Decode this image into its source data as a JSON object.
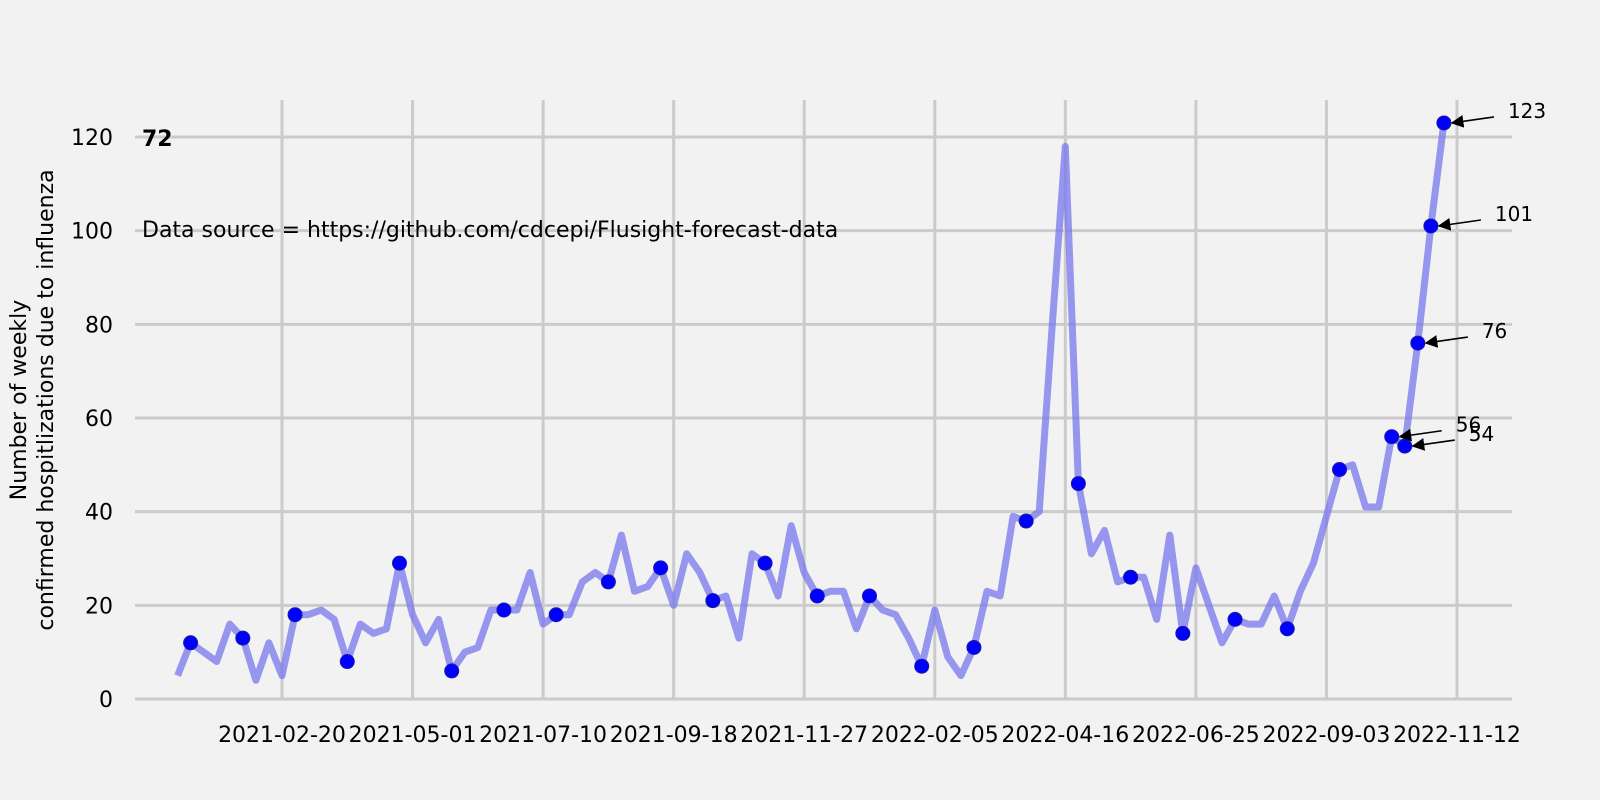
{
  "chart_data": {
    "type": "line",
    "title": "",
    "xlabel": "",
    "ylabel": "Number of weekly\nconfirmed hospitlizations due to influenza",
    "corner_label": "72",
    "source_note": "Data source = https://github.com/cdcepi/Flusight-forecast-data",
    "ylim": [
      0,
      127
    ],
    "yticks": [
      0,
      20,
      40,
      60,
      80,
      100,
      120
    ],
    "x_start": "2020-12-26",
    "xticks": [
      "2021-02-20",
      "2021-05-01",
      "2021-07-10",
      "2021-09-18",
      "2021-11-27",
      "2022-02-05",
      "2022-04-16",
      "2022-06-25",
      "2022-09-03",
      "2022-11-12"
    ],
    "grid": true,
    "line_color": "#7777ee",
    "marker_color": "#0000ff",
    "values": [
      5,
      12,
      10,
      8,
      16,
      13,
      4,
      12,
      5,
      18,
      18,
      19,
      17,
      8,
      16,
      14,
      15,
      29,
      18,
      12,
      17,
      6,
      10,
      11,
      19,
      19,
      19,
      27,
      16,
      18,
      18,
      25,
      27,
      25,
      35,
      23,
      24,
      28,
      20,
      31,
      27,
      21,
      22,
      13,
      31,
      29,
      22,
      37,
      27,
      22,
      23,
      23,
      15,
      22,
      19,
      18,
      13,
      7,
      19,
      9,
      5,
      11,
      23,
      22,
      39,
      38,
      40,
      80,
      118,
      46,
      31,
      36,
      25,
      26,
      26,
      17,
      35,
      14,
      28,
      20,
      12,
      17,
      16,
      16,
      22,
      15,
      23,
      29,
      39,
      49,
      50,
      41,
      41,
      56,
      54,
      76,
      101,
      123
    ],
    "marker_indices": [
      1,
      5,
      9,
      13,
      17,
      21,
      25,
      29,
      33,
      37,
      41,
      45,
      49,
      53,
      57,
      61,
      65,
      69,
      73,
      77,
      81,
      85,
      89,
      93,
      94,
      95,
      96,
      97
    ],
    "annotations": [
      {
        "index": 93,
        "label": "56"
      },
      {
        "index": 94,
        "label": "54"
      },
      {
        "index": 95,
        "label": "76"
      },
      {
        "index": 96,
        "label": "101"
      },
      {
        "index": 97,
        "label": "123"
      }
    ]
  }
}
